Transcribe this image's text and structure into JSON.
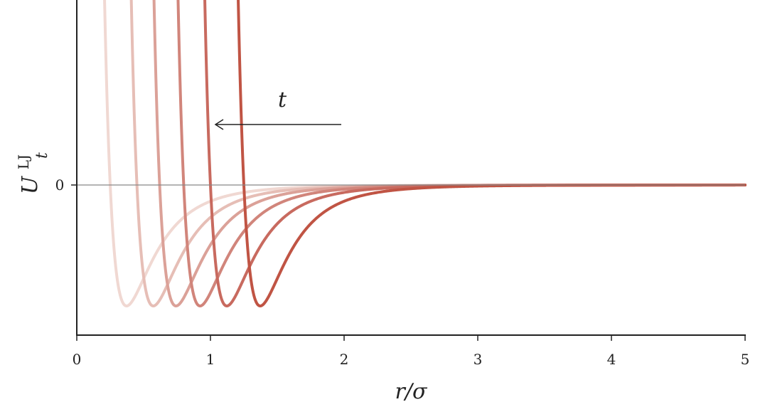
{
  "chart_data": {
    "type": "line",
    "xlabel": "r/σ",
    "ylabel": {
      "base": "U",
      "superscript": "LJ",
      "subscript": "t"
    },
    "xlim": [
      0,
      5
    ],
    "x_ticks": [
      "0",
      "1",
      "2",
      "3",
      "4",
      "5"
    ],
    "y_ticks": [
      "0"
    ],
    "zero_line": true,
    "grid": false,
    "legend": "none",
    "annotation": {
      "text": "t",
      "arrow_direction": "left"
    },
    "well_depth": -1,
    "series_shifts": [
      -0.75,
      -0.55,
      -0.38,
      -0.2,
      0,
      0.25
    ],
    "series_colors": [
      "#f0d8d2",
      "#e6beb6",
      "#dba198",
      "#d1857b",
      "#c86a5f",
      "#c05444"
    ],
    "series_opacity": [
      1,
      1,
      1,
      1,
      1,
      1
    ]
  }
}
